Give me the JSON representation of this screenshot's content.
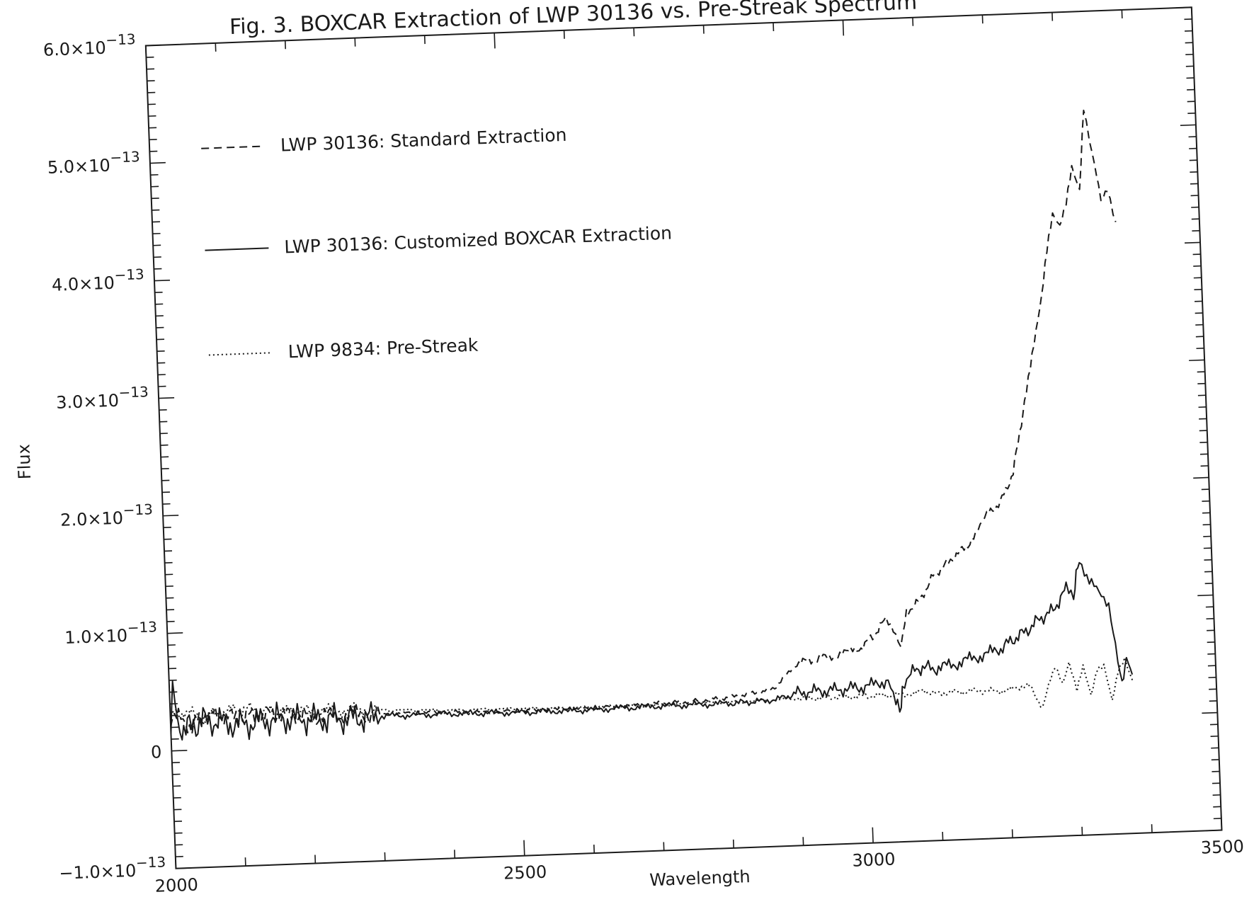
{
  "chart_data": {
    "type": "line",
    "title": "Fig. 3.  BOXCAR Extraction of LWP 30136 vs. Pre-Streak Spectrum",
    "xlabel": "Wavelength",
    "ylabel": "Flux",
    "xlim": [
      2000,
      3500
    ],
    "ylim": [
      -1e-13,
      6e-13
    ],
    "grid": false,
    "legend_placement": "upper-left",
    "x_tick_labels": [
      {
        "value": 2000,
        "label": "2000"
      },
      {
        "value": 2500,
        "label": "2500"
      },
      {
        "value": 3000,
        "label": "3000"
      },
      {
        "value": 3500,
        "label": "3500"
      }
    ],
    "y_tick_labels": [
      {
        "value": -1e-13,
        "mant": "−1.0×10",
        "exp": "−13"
      },
      {
        "value": 0,
        "mant": "0",
        "exp": ""
      },
      {
        "value": 1e-13,
        "mant": "1.0×10",
        "exp": "−13"
      },
      {
        "value": 2e-13,
        "mant": "2.0×10",
        "exp": "−13"
      },
      {
        "value": 3e-13,
        "mant": "3.0×10",
        "exp": "−13"
      },
      {
        "value": 4e-13,
        "mant": "4.0×10",
        "exp": "−13"
      },
      {
        "value": 5e-13,
        "mant": "5.0×10",
        "exp": "−13"
      },
      {
        "value": 6e-13,
        "mant": "6.0×10",
        "exp": "−13"
      }
    ],
    "series": [
      {
        "name": "LWP 30136:  Standard Extraction",
        "dash": "dashed",
        "x": [
          2000,
          2015,
          2030,
          2050,
          2100,
          2150,
          2200,
          2300,
          2400,
          2500,
          2600,
          2700,
          2750,
          2800,
          2850,
          2870,
          2900,
          2950,
          2990,
          3010,
          3030,
          3040,
          3050,
          3060,
          3080,
          3100,
          3120,
          3140,
          3160,
          3170,
          3180,
          3200,
          3220,
          3240,
          3250,
          3260,
          3270,
          3280,
          3290,
          3300,
          3310,
          3320,
          3330,
          3340,
          3350,
          3355,
          3360,
          3370,
          3380
        ],
        "y": [
          2.5e-14,
          2.8e-14,
          2e-14,
          3e-14,
          2.6e-14,
          2.8e-14,
          2.5e-14,
          2.5e-14,
          2.4e-14,
          2.3e-14,
          2.3e-14,
          2.5e-14,
          2.6e-14,
          2.8e-14,
          3.2e-14,
          3.6e-14,
          5.5e-14,
          6e-14,
          6.5e-14,
          7.5e-14,
          9e-14,
          8e-14,
          6.5e-14,
          9.5e-14,
          1.05e-13,
          1.25e-13,
          1.35e-13,
          1.45e-13,
          1.55e-13,
          1.65e-13,
          1.75e-13,
          1.85e-13,
          2.1e-13,
          2.7e-13,
          3e-13,
          3.3e-13,
          3.6e-13,
          4e-13,
          4.3e-13,
          4.2e-13,
          4.4e-13,
          4.7e-13,
          4.5e-13,
          5.2e-13,
          4.8e-13,
          4.6e-13,
          4.4e-13,
          4.5e-13,
          4.2e-13
        ]
      },
      {
        "name": "LWP 30136:  Customized BOXCAR Extraction",
        "dash": "solid",
        "x": [
          2000,
          2005,
          2010,
          2030,
          2050,
          2100,
          2150,
          2200,
          2250,
          2300,
          2400,
          2500,
          2600,
          2700,
          2800,
          2850,
          2880,
          2900,
          2950,
          3000,
          3030,
          3040,
          3045,
          3050,
          3060,
          3080,
          3100,
          3130,
          3160,
          3190,
          3210,
          3230,
          3250,
          3270,
          3290,
          3300,
          3305,
          3310,
          3320,
          3330,
          3340,
          3350,
          3355,
          3360,
          3365,
          3370,
          3375,
          3380
        ],
        "y": [
          2e-14,
          6e-14,
          2e-14,
          2e-14,
          2.5e-14,
          2e-14,
          2.4e-14,
          2.3e-14,
          2.2e-14,
          2.3e-14,
          2.3e-14,
          2.2e-14,
          2.2e-14,
          2.3e-14,
          2.3e-14,
          2.4e-14,
          2.6e-14,
          3e-14,
          3.1e-14,
          3.3e-14,
          3.8e-14,
          2e-14,
          1e-14,
          3e-14,
          4.2e-14,
          4.8e-14,
          4.6e-14,
          5e-14,
          5.5e-14,
          6e-14,
          6.8e-14,
          7.5e-14,
          8.5e-14,
          9.2e-14,
          1.1e-13,
          1e-13,
          1.25e-13,
          1.3e-13,
          1.15e-13,
          1.1e-13,
          1e-13,
          9e-14,
          7.5e-14,
          4.5e-14,
          3e-14,
          4e-14,
          5e-14,
          3.5e-14
        ]
      },
      {
        "name": "LWP 9834:  Pre-Streak",
        "dash": "dotted",
        "x": [
          2000,
          2020,
          2050,
          2100,
          2150,
          2200,
          2300,
          2400,
          2500,
          2600,
          2700,
          2800,
          2900,
          2950,
          3000,
          3050,
          3080,
          3100,
          3150,
          3200,
          3230,
          3250,
          3260,
          3270,
          3280,
          3290,
          3300,
          3310,
          3320,
          3330,
          3340,
          3350,
          3360,
          3370,
          3380
        ],
        "y": [
          3e-14,
          3.2e-14,
          2.8e-14,
          3.4e-14,
          3e-14,
          3e-14,
          2.8e-14,
          2.6e-14,
          2.5e-14,
          2.4e-14,
          2.4e-14,
          2.4e-14,
          2.5e-14,
          2.5e-14,
          2.5e-14,
          2.5e-14,
          2.7e-14,
          2.5e-14,
          2.6e-14,
          2.5e-14,
          3e-14,
          1e-14,
          3e-14,
          4.5e-14,
          3e-14,
          4.8e-14,
          2.5e-14,
          4.5e-14,
          2e-14,
          4.2e-14,
          4.5e-14,
          1.5e-14,
          4e-14,
          5e-14,
          3e-14
        ]
      }
    ]
  }
}
